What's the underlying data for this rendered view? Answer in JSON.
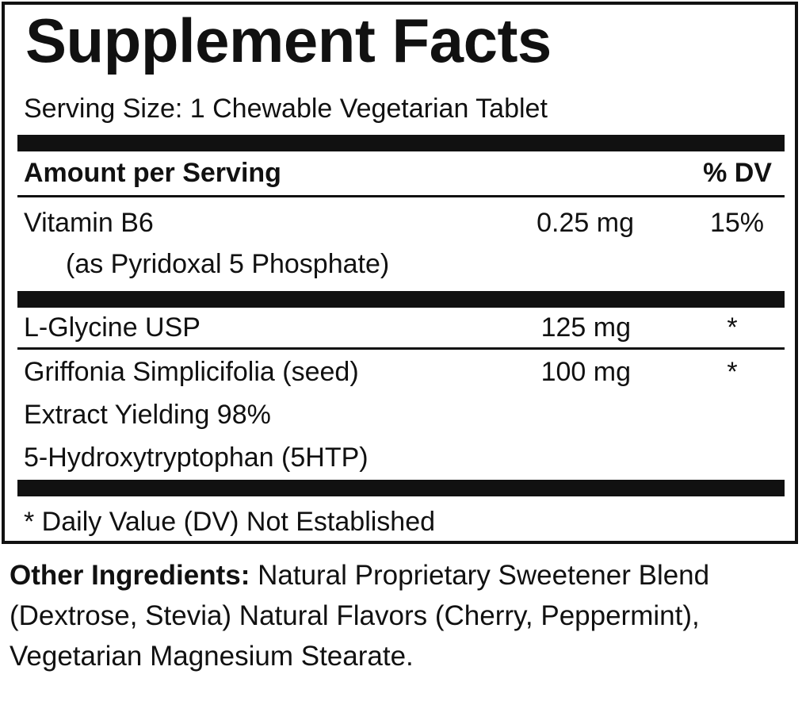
{
  "panel": {
    "title": "Supplement Facts",
    "serving_size": "Serving Size:  1 Chewable Vegetarian Tablet",
    "header": {
      "amount_label": "Amount per Serving",
      "dv_label": "% DV"
    },
    "rows": [
      {
        "name": "Vitamin B6",
        "sub": "(as Pyridoxal 5 Phosphate)",
        "amount": "0.25 mg",
        "dv": "15%"
      },
      {
        "name": "L-Glycine USP",
        "amount": "125 mg",
        "dv": "*"
      },
      {
        "name_lines": [
          "Griffonia Simplicifolia (seed)",
          "Extract Yielding 98%",
          "5-Hydroxytryptophan (5HTP)"
        ],
        "amount": "100 mg",
        "dv": "*"
      }
    ],
    "footnote": "* Daily Value (DV) Not Established"
  },
  "other_ingredients": {
    "label": "Other Ingredients:",
    "text": " Natural Proprietary Sweetener Blend (Dextrose, Stevia) Natural Flavors (Cherry, Peppermint), Vegetarian Magnesium Stearate."
  }
}
